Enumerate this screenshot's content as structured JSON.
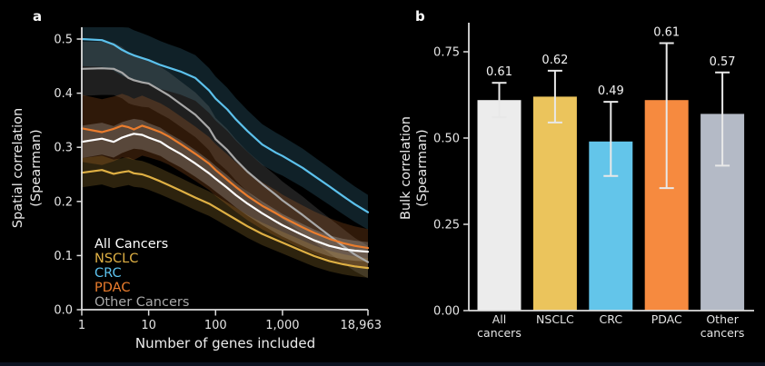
{
  "page": {
    "background": "#000000",
    "footer_strip_color": "#0c1220"
  },
  "chart_data": [
    {
      "type": "line",
      "panel_label": "a",
      "xlabel": "Number of genes included",
      "ylabel": [
        "Spatial correlation",
        "(Spearman)"
      ],
      "xscale": "log",
      "xlim": [
        1,
        18963
      ],
      "ylim": [
        0,
        0.52
      ],
      "grid": false,
      "legend_position": "lower-left-inside",
      "xticks": [
        1,
        10,
        100,
        1000,
        18963
      ],
      "xtick_labels": [
        "1",
        "10",
        "100",
        "1,000",
        "18,963"
      ],
      "yticks": [
        0,
        0.1,
        0.2,
        0.3,
        0.4,
        0.5
      ],
      "ytick_labels": [
        "0.0",
        "0.1",
        "0.2",
        "0.3",
        "0.4",
        "0.5"
      ],
      "x": [
        1,
        2,
        3,
        4,
        5,
        6,
        8,
        10,
        15,
        20,
        30,
        50,
        80,
        100,
        150,
        200,
        300,
        500,
        800,
        1000,
        2000,
        3000,
        5000,
        8000,
        12000,
        18963
      ],
      "series": [
        {
          "name": "All Cancers",
          "color": "#ffffff",
          "band_color": "rgba(255,255,255,0.20)",
          "band_hw": [
            0.03,
            0.018
          ],
          "y": [
            0.31,
            0.316,
            0.31,
            0.318,
            0.322,
            0.325,
            0.323,
            0.318,
            0.31,
            0.3,
            0.288,
            0.27,
            0.252,
            0.242,
            0.225,
            0.212,
            0.196,
            0.178,
            0.163,
            0.156,
            0.138,
            0.128,
            0.118,
            0.112,
            0.109,
            0.107
          ]
        },
        {
          "name": "NSCLC",
          "color": "#dfb044",
          "band_color": "rgba(223,176,68,0.20)",
          "band_hw": [
            0.027,
            0.018
          ],
          "y": [
            0.253,
            0.258,
            0.251,
            0.254,
            0.256,
            0.252,
            0.25,
            0.246,
            0.237,
            0.23,
            0.22,
            0.207,
            0.196,
            0.189,
            0.176,
            0.167,
            0.154,
            0.14,
            0.129,
            0.124,
            0.108,
            0.099,
            0.09,
            0.084,
            0.08,
            0.077
          ]
        },
        {
          "name": "CRC",
          "color": "#5cc1ec",
          "band_color": "rgba(92,193,236,0.17)",
          "band_hw": [
            0.05,
            0.032
          ],
          "y": [
            0.5,
            0.498,
            0.49,
            0.48,
            0.474,
            0.47,
            0.465,
            0.461,
            0.452,
            0.447,
            0.44,
            0.428,
            0.405,
            0.39,
            0.37,
            0.352,
            0.33,
            0.305,
            0.29,
            0.284,
            0.262,
            0.247,
            0.228,
            0.21,
            0.195,
            0.18
          ]
        },
        {
          "name": "PDAC",
          "color": "#eb7d2d",
          "band_color": "rgba(235,125,45,0.20)",
          "band_hw": [
            0.062,
            0.035
          ],
          "y": [
            0.335,
            0.328,
            0.334,
            0.34,
            0.337,
            0.333,
            0.34,
            0.336,
            0.328,
            0.32,
            0.306,
            0.288,
            0.27,
            0.258,
            0.24,
            0.227,
            0.21,
            0.192,
            0.178,
            0.171,
            0.152,
            0.142,
            0.131,
            0.123,
            0.118,
            0.114
          ]
        },
        {
          "name": "Other Cancers",
          "color": "#a8a8a8",
          "band_color": "rgba(170,170,170,0.18)",
          "band_hw": [
            0.05,
            0.03
          ],
          "y": [
            0.445,
            0.446,
            0.445,
            0.438,
            0.428,
            0.424,
            0.42,
            0.418,
            0.405,
            0.396,
            0.38,
            0.36,
            0.335,
            0.315,
            0.295,
            0.277,
            0.255,
            0.232,
            0.212,
            0.202,
            0.175,
            0.158,
            0.137,
            0.118,
            0.102,
            0.088
          ]
        }
      ]
    },
    {
      "type": "bar",
      "panel_label": "b",
      "ylabel": [
        "Bulk correlation",
        "(Spearman)"
      ],
      "ylim": [
        0,
        0.835
      ],
      "grid": false,
      "categories": [
        [
          "All",
          "cancers"
        ],
        [
          "NSCLC"
        ],
        [
          "CRC"
        ],
        [
          "PDAC"
        ],
        [
          "Other",
          "cancers"
        ]
      ],
      "values": [
        0.61,
        0.62,
        0.49,
        0.61,
        0.57
      ],
      "value_labels": [
        "0.61",
        "0.62",
        "0.49",
        "0.61",
        "0.57"
      ],
      "errors": [
        [
          0.56,
          0.66
        ],
        [
          0.545,
          0.695
        ],
        [
          0.39,
          0.605
        ],
        [
          0.355,
          0.775
        ],
        [
          0.42,
          0.69
        ]
      ],
      "colors": [
        "#ececec",
        "#ebc45c",
        "#63c5ea",
        "#f68a3f",
        "#b4bac6"
      ],
      "error_color": "#e8e8e8",
      "yticks": [
        0,
        0.25,
        0.5,
        0.75
      ],
      "ytick_labels": [
        "0.00",
        "0.25",
        "0.50",
        "0.75"
      ]
    }
  ]
}
